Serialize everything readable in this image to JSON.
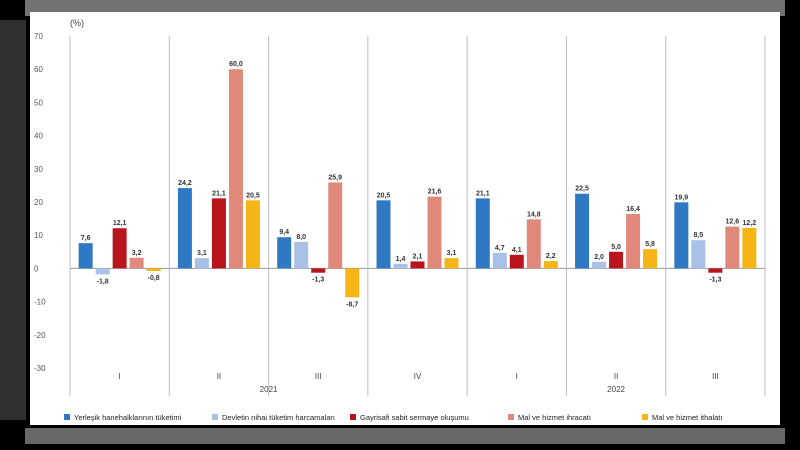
{
  "chart_data": {
    "type": "bar",
    "unit_label": "(%)",
    "ylim": [
      -30,
      70
    ],
    "yticks": [
      -30,
      -20,
      -10,
      0,
      10,
      20,
      30,
      40,
      50,
      60,
      70
    ],
    "quarters": [
      "I",
      "II",
      "III",
      "IV",
      "I",
      "II",
      "III"
    ],
    "years": [
      {
        "label": "2021",
        "start": 0,
        "end": 3
      },
      {
        "label": "2022",
        "start": 4,
        "end": 6
      }
    ],
    "series": [
      {
        "name": "Yerleşik hanehalklarının tüketimi",
        "color": "#2f78c4",
        "values": [
          7.6,
          24.2,
          9.4,
          20.5,
          21.1,
          22.5,
          19.9
        ],
        "labels": [
          "7,6",
          "24,2",
          "9,4",
          "20,5",
          "21,1",
          "22,5",
          "19,9"
        ]
      },
      {
        "name": "Devletin nihai tüketim harcamaları",
        "color": "#a9c1e6",
        "values": [
          -1.8,
          3.1,
          8.0,
          1.4,
          4.7,
          2.0,
          8.5
        ],
        "labels": [
          "-1,8",
          "3,1",
          "8,0",
          "1,4",
          "4,7",
          "2,0",
          "8,5"
        ]
      },
      {
        "name": "Gayrisafi sabit sermaye oluşumu",
        "color": "#b8161c",
        "values": [
          12.1,
          21.1,
          -1.3,
          2.1,
          4.1,
          5.0,
          -1.3
        ],
        "labels": [
          "12,1",
          "21,1",
          "-1,3",
          "2,1",
          "4,1",
          "5,0",
          "-1,3"
        ]
      },
      {
        "name": "Mal ve hizmet ihracatı",
        "color": "#e0897a",
        "values": [
          3.2,
          60.0,
          25.9,
          21.6,
          14.8,
          16.4,
          12.6
        ],
        "labels": [
          "3,2",
          "60,0",
          "25,9",
          "21,6",
          "14,8",
          "16,4",
          "12,6"
        ]
      },
      {
        "name": "Mal ve hizmet ithalatı",
        "color": "#f6b517",
        "values": [
          -0.8,
          20.5,
          -8.7,
          3.1,
          2.2,
          5.8,
          12.2
        ],
        "labels": [
          "-0,8",
          "20,5",
          "-8,7",
          "3,1",
          "2,2",
          "5,8",
          "12,2"
        ]
      }
    ]
  }
}
